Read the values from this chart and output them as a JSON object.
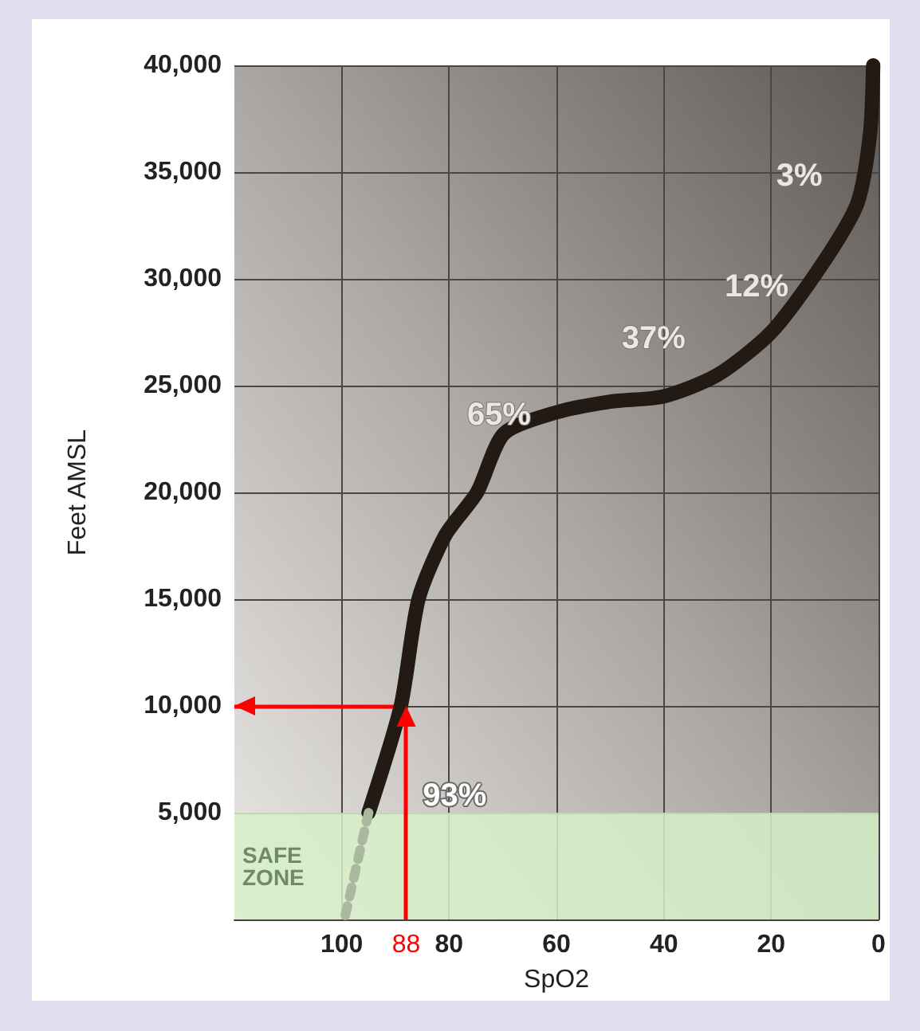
{
  "chart_data": {
    "type": "line",
    "xlabel": "SpO2",
    "ylabel": "Feet AMSL",
    "xlim": [
      120,
      0
    ],
    "xticks": [
      100,
      80,
      60,
      40,
      20,
      0
    ],
    "ylim": [
      0,
      40000
    ],
    "yticks": [
      {
        "value": 5000,
        "label": "5,000"
      },
      {
        "value": 10000,
        "label": "10,000"
      },
      {
        "value": 15000,
        "label": "15,000"
      },
      {
        "value": 20000,
        "label": "20,000"
      },
      {
        "value": 25000,
        "label": "25,000"
      },
      {
        "value": 30000,
        "label": "30,000"
      },
      {
        "value": 35000,
        "label": "35,000"
      },
      {
        "value": 40000,
        "label": "40,000"
      }
    ],
    "grid": true,
    "marker": "none",
    "series": [
      {
        "color": "#231a14",
        "line_style": "solid",
        "x": [
          95,
          89,
          85.7,
          80.7,
          74.8,
          69.8,
          60,
          50,
          40,
          30,
          20,
          11,
          4,
          1.6,
          1
        ],
        "values": [
          5000,
          10000,
          15000,
          18000,
          20000,
          22750,
          23750,
          24250,
          24500,
          25500,
          27500,
          30500,
          33500,
          36750,
          40000
        ]
      },
      {
        "color": "#a9b89e",
        "line_style": "dotted",
        "x": [
          95,
          99.5
        ],
        "values": [
          5000,
          0
        ]
      }
    ],
    "bands": [
      {
        "axis": "y",
        "from": 0,
        "to": 5000,
        "label": "SAFE ZONE",
        "color": "#d6f0c8"
      }
    ],
    "ref_lines": [
      {
        "axis": "x",
        "value": 88,
        "label": "88",
        "color": "#ff0000"
      },
      {
        "axis": "y",
        "value": 10000,
        "color": "#ff0000"
      }
    ],
    "annotations": [
      "3%",
      "12%",
      "37%",
      "65%",
      "93%"
    ]
  }
}
